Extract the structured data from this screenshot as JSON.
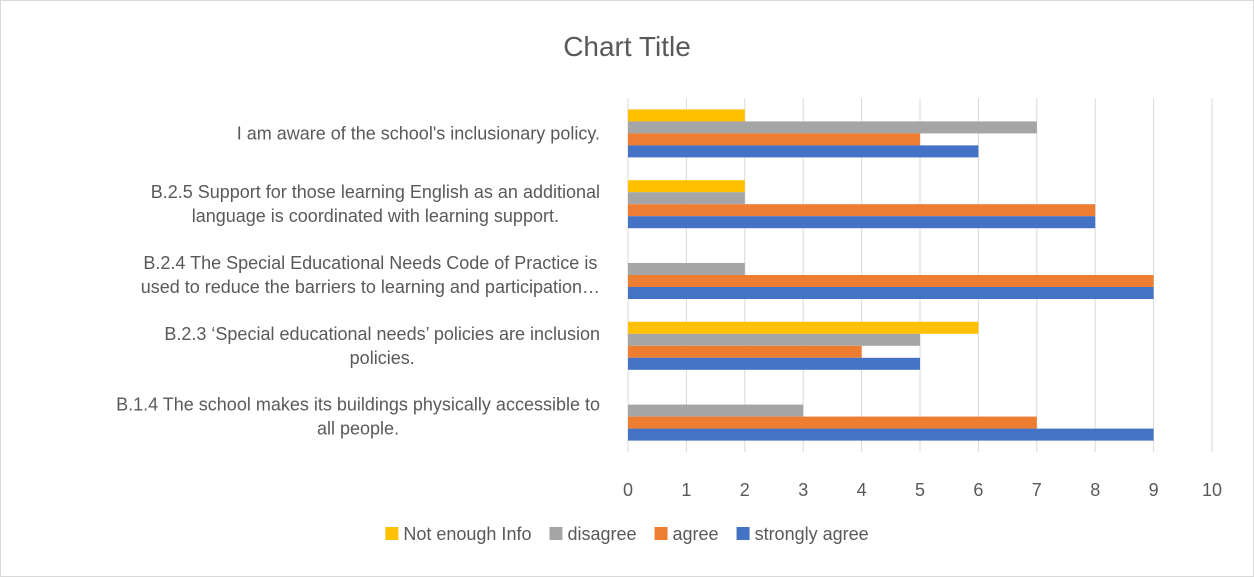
{
  "chart_data": {
    "type": "bar",
    "orientation": "horizontal",
    "title": "Chart Title",
    "xlim": [
      0,
      10
    ],
    "ticks": [
      "0",
      "1",
      "2",
      "3",
      "4",
      "5",
      "6",
      "7",
      "8",
      "9",
      "10"
    ],
    "grid": true,
    "legend_position": "bottom",
    "categories": [
      [
        "I am aware of the school's inclusionary policy."
      ],
      [
        "B.2.5  Support for those learning English as an additional",
        "language is coordinated with learning support."
      ],
      [
        "B.2.4  The Special Educational Needs Code of Practice is",
        "used to reduce the barriers to learning and participation…"
      ],
      [
        "B.2.3  ‘Special educational needs’ policies are inclusion",
        "policies."
      ],
      [
        "B.1.4  The school makes its buildings physically accessible to",
        "all people."
      ]
    ],
    "series": [
      {
        "name": "Not enough Info",
        "color": "#FFC000",
        "values": [
          2,
          2,
          0,
          6,
          0
        ]
      },
      {
        "name": "disagree",
        "color": "#A5A5A5",
        "values": [
          7,
          2,
          2,
          5,
          3
        ]
      },
      {
        "name": "agree",
        "color": "#ED7D31",
        "values": [
          5,
          8,
          9,
          4,
          7
        ]
      },
      {
        "name": "strongly agree",
        "color": "#4472C4",
        "values": [
          6,
          8,
          9,
          5,
          9
        ]
      }
    ]
  }
}
